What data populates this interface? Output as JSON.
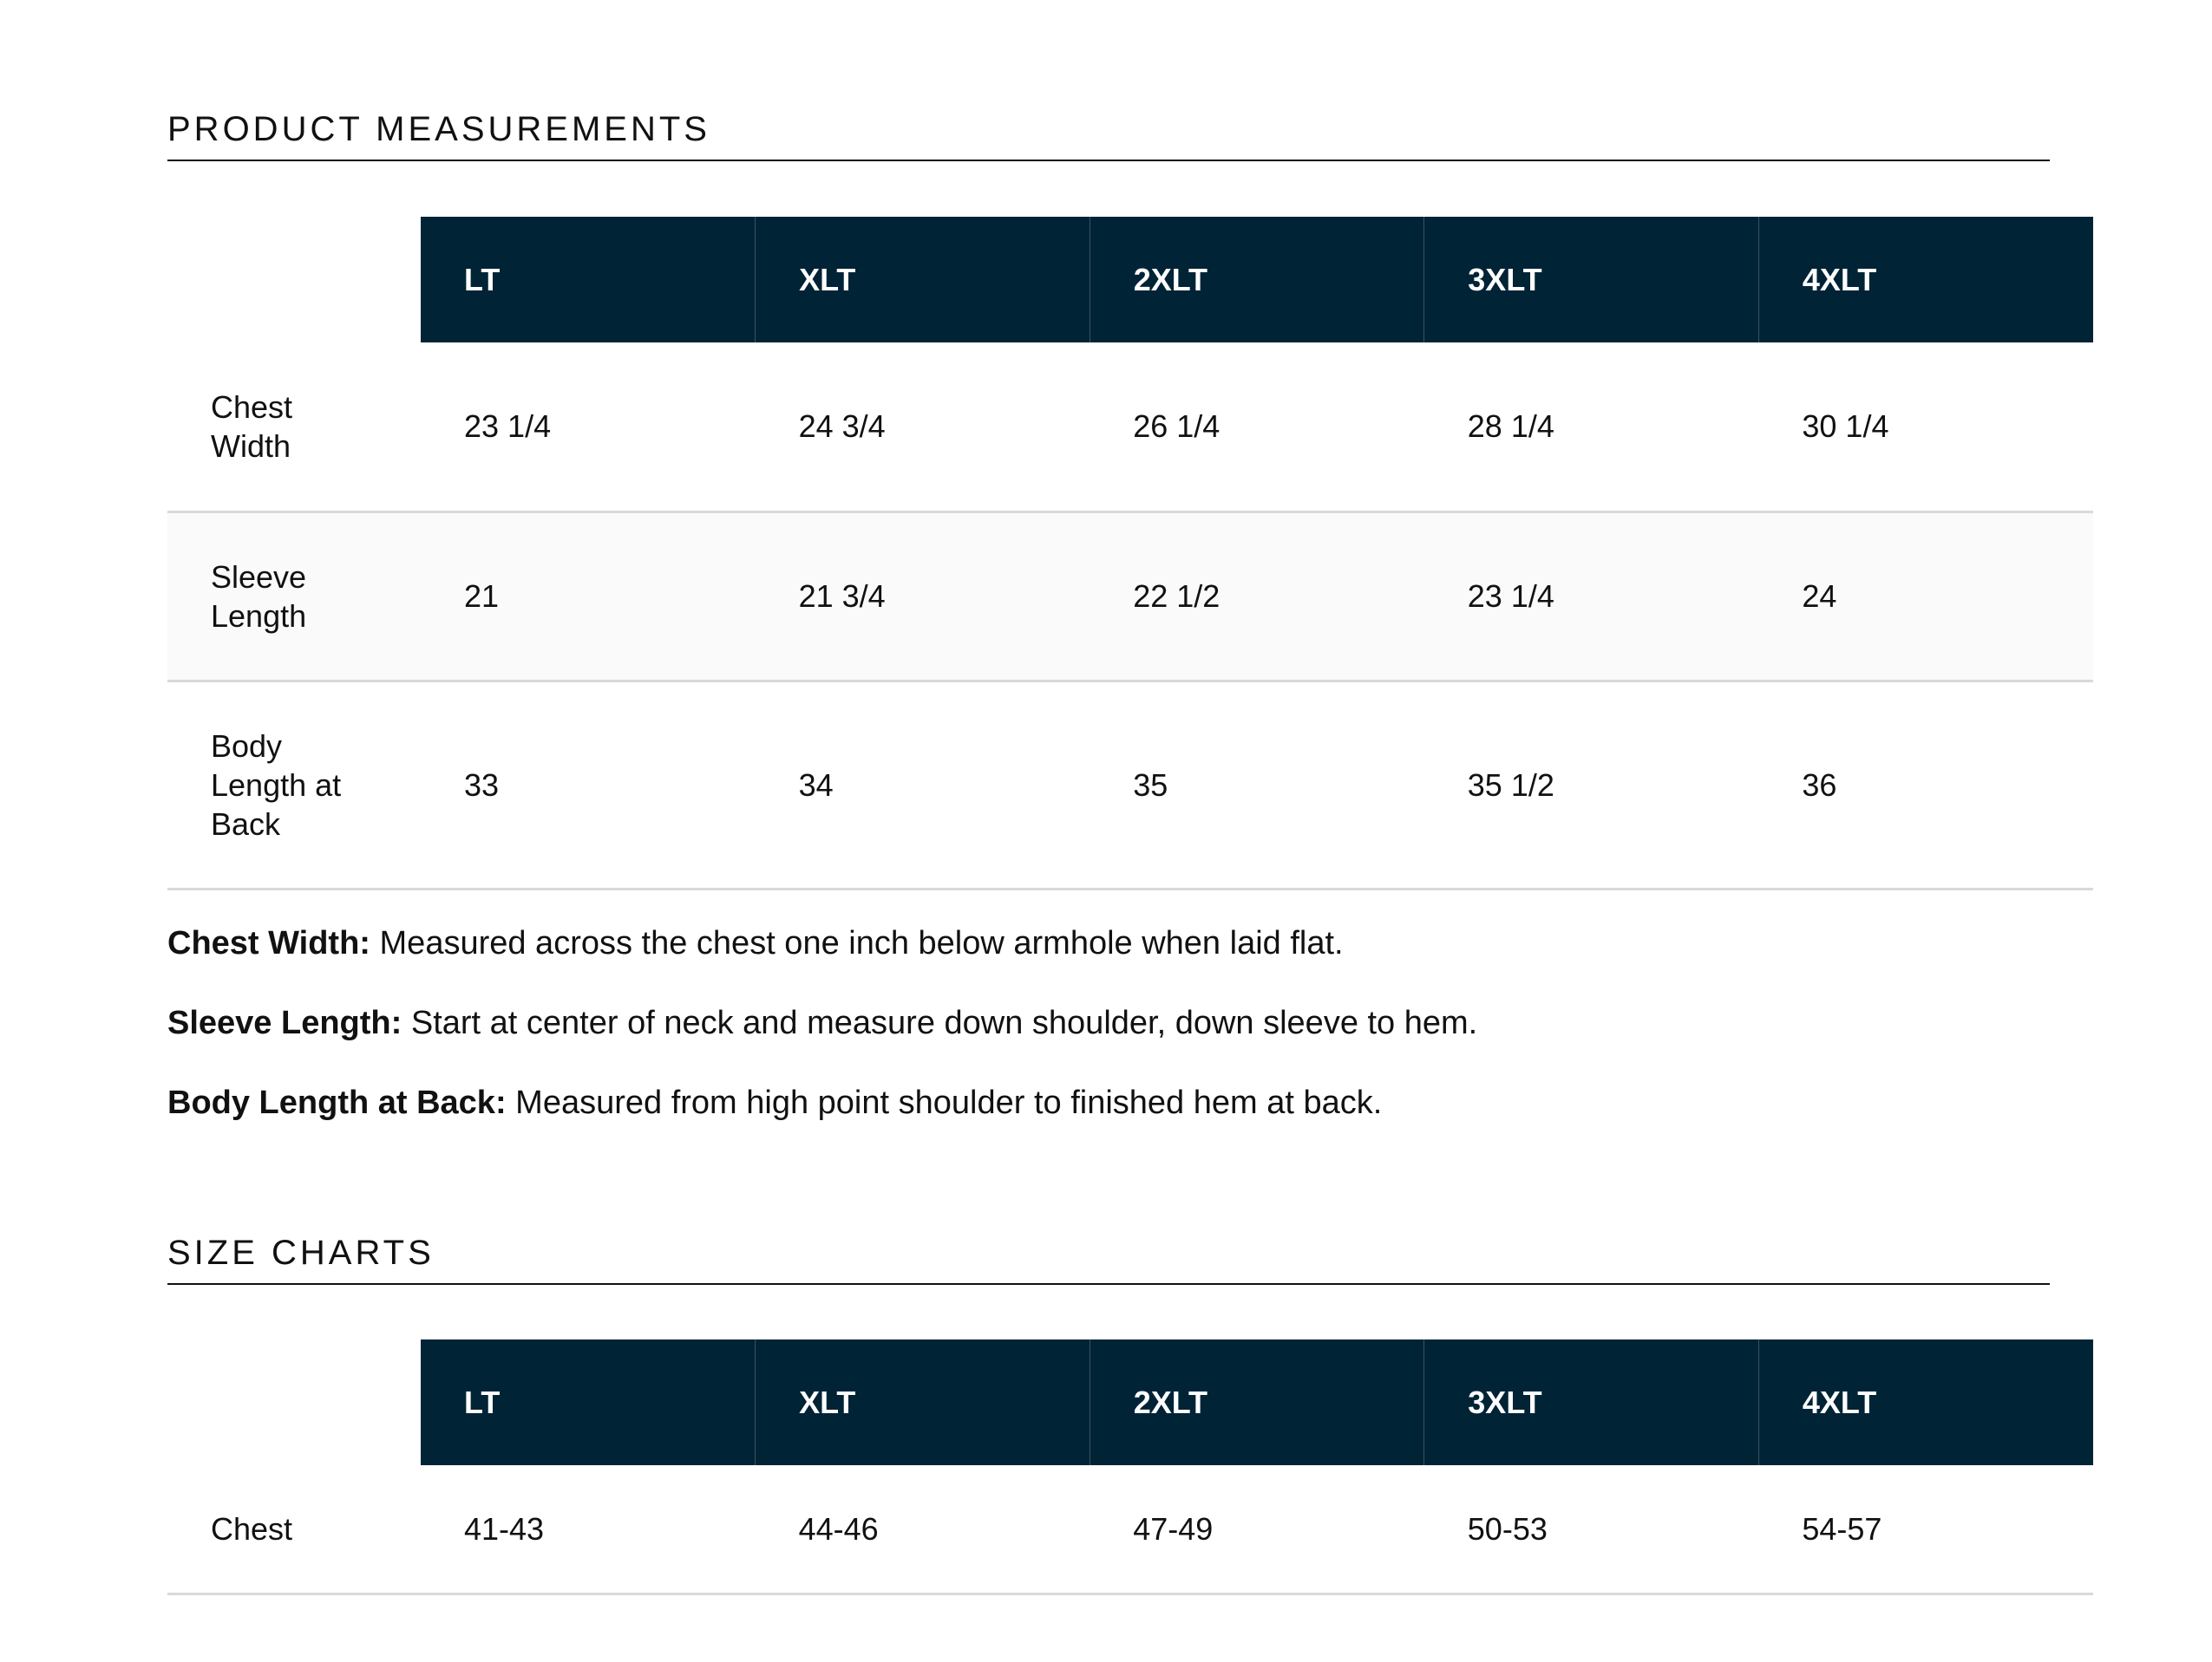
{
  "measurements": {
    "title": "PRODUCT MEASUREMENTS",
    "sizes": [
      "LT",
      "XLT",
      "2XLT",
      "3XLT",
      "4XLT"
    ],
    "rows": [
      {
        "label": "Chest Width",
        "values": [
          "23 1/4",
          "24 3/4",
          "26 1/4",
          "28 1/4",
          "30 1/4"
        ]
      },
      {
        "label": "Sleeve Length",
        "values": [
          "21",
          "21 3/4",
          "22 1/2",
          "23 1/4",
          "24"
        ]
      },
      {
        "label": "Body Length at Back",
        "values": [
          "33",
          "34",
          "35",
          "35 1/2",
          "36"
        ]
      }
    ]
  },
  "notes": [
    {
      "term": "Chest Width:",
      "text": " Measured across the chest one inch below armhole when laid flat."
    },
    {
      "term": "Sleeve Length:",
      "text": " Start at center of neck and measure down shoulder, down sleeve to hem."
    },
    {
      "term": "Body Length at Back:",
      "text": " Measured from high point shoulder to finished hem at back."
    }
  ],
  "size_charts": {
    "title": "SIZE CHARTS",
    "sizes": [
      "LT",
      "XLT",
      "2XLT",
      "3XLT",
      "4XLT"
    ],
    "rows": [
      {
        "label": "Chest",
        "values": [
          "41-43",
          "44-46",
          "47-49",
          "50-53",
          "54-57"
        ]
      }
    ]
  },
  "colors": {
    "header_bg": "#012336",
    "header_text": "#ffffff",
    "row_divider": "#d9d9d9"
  }
}
